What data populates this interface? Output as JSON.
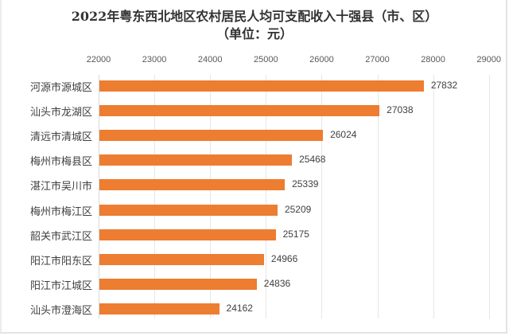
{
  "chart_data": {
    "type": "bar",
    "orientation": "horizontal",
    "title": "2022年粤东西北地区农村居民人均可支配收入十强县（市、区）",
    "subtitle": "（单位：元）",
    "xlabel": "",
    "ylabel": "",
    "xlim": [
      22000,
      29000
    ],
    "x_ticks": [
      "22000",
      "23000",
      "24000",
      "25000",
      "26000",
      "27000",
      "28000",
      "29000"
    ],
    "grid": true,
    "legend": null,
    "categories": [
      "河源市源城区",
      "汕头市龙湖区",
      "清远市清城区",
      "梅州市梅县区",
      "湛江市吴川市",
      "梅州市梅江区",
      "韶关市武江区",
      "阳江市阳东区",
      "阳江市江城区",
      "汕头市澄海区"
    ],
    "values": [
      27832,
      27038,
      26024,
      25468,
      25339,
      25209,
      25175,
      24966,
      24836,
      24162
    ],
    "value_labels": [
      "27832",
      "27038",
      "26024",
      "25468",
      "25339",
      "25209",
      "25175",
      "24966",
      "24836",
      "24162"
    ],
    "bar_color": "#ed7d31"
  }
}
